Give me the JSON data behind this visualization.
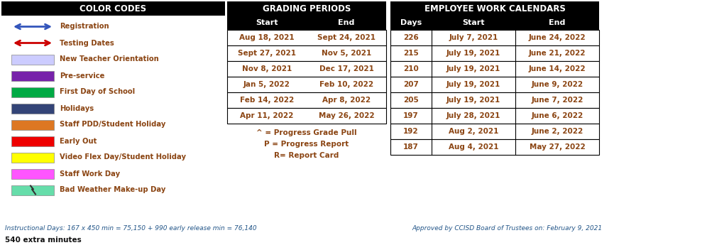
{
  "color_codes_title": "COLOR CODES",
  "grading_title": "GRADING PERIODS",
  "employee_title": "EMPLOYEE WORK CALENDARS",
  "color_items": [
    {
      "type": "arrow",
      "color": "#3355BB",
      "label": "Registration"
    },
    {
      "type": "arrow",
      "color": "#CC0000",
      "label": "Testing Dates"
    },
    {
      "type": "box",
      "color": "#CCCCFF",
      "label": "New Teacher Orientation"
    },
    {
      "type": "box",
      "color": "#7722AA",
      "label": "Pre-service"
    },
    {
      "type": "box",
      "color": "#00AA44",
      "label": "First Day of School"
    },
    {
      "type": "box",
      "color": "#334477",
      "label": "Holidays"
    },
    {
      "type": "box",
      "color": "#DD7722",
      "label": "Staff PDD/Student Holiday"
    },
    {
      "type": "box",
      "color": "#EE0000",
      "label": "Early Out"
    },
    {
      "type": "box",
      "color": "#FFFF00",
      "label": "Video Flex Day/Student Holiday"
    },
    {
      "type": "box",
      "color": "#FF55FF",
      "label": "Staff Work Day"
    },
    {
      "type": "lightning",
      "color": "#66DDAA",
      "label": "Bad Weather Make-up Day"
    }
  ],
  "grading_headers": [
    "Start",
    "End"
  ],
  "grading_rows": [
    [
      "Aug 18, 2021",
      "Sept 24, 2021"
    ],
    [
      "Sept 27, 2021",
      "Nov 5, 2021"
    ],
    [
      "Nov 8, 2021",
      "Dec 17, 2021"
    ],
    [
      "Jan 5, 2022",
      "Feb 10, 2022"
    ],
    [
      "Feb 14, 2022",
      "Apr 8, 2022"
    ],
    [
      "Apr 11, 2022",
      "May 26, 2022"
    ]
  ],
  "grading_notes": [
    "^ = Progress Grade Pull",
    "P = Progress Report",
    "R= Report Card"
  ],
  "emp_headers": [
    "Days",
    "Start",
    "End"
  ],
  "emp_rows": [
    [
      "226",
      "July 7, 2021",
      "June 24, 2022"
    ],
    [
      "215",
      "July 19, 2021",
      "June 21, 2022"
    ],
    [
      "210",
      "July 19, 2021",
      "June 14, 2022"
    ],
    [
      "207",
      "July 19, 2021",
      "June 9, 2022"
    ],
    [
      "205",
      "July 19, 2021",
      "June 7, 2022"
    ],
    [
      "197",
      "July 28, 2021",
      "June 6, 2022"
    ],
    [
      "192",
      "Aug 2, 2021",
      "June 2, 2022"
    ],
    [
      "187",
      "Aug 4, 2021",
      "May 27, 2022"
    ]
  ],
  "footer_text": "Instructional Days: 167 x 450 min = 75,150 + 990 early release min = 76,140",
  "footer_text2": "540 extra minutes",
  "footer_approved": "Approved by CCISD Board of Trustees on: February 9, 2021",
  "header_bg": "#000000",
  "header_fg": "#FFFFFF",
  "text_color": "#8B4513",
  "bg_color": "#FFFFFF"
}
